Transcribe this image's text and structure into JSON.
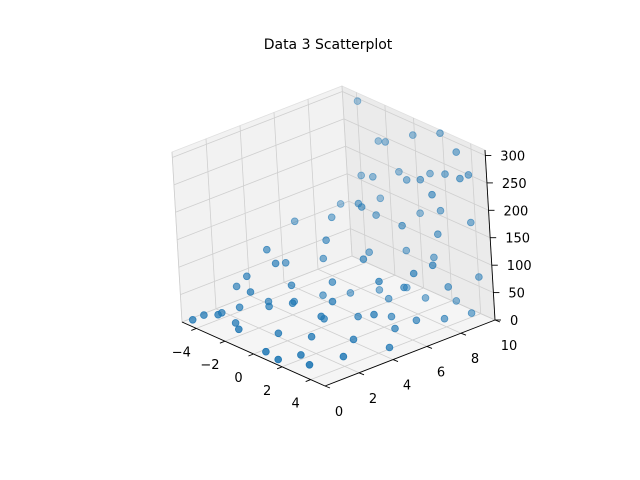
{
  "chart_data": {
    "type": "scatter",
    "projection": "3d",
    "title": "Data 3 Scatterplot",
    "xlabel": "",
    "ylabel": "",
    "zlabel": "",
    "xlim": [
      -5,
      5
    ],
    "ylim": [
      0,
      10
    ],
    "zlim": [
      0,
      310
    ],
    "x_ticks": [
      -4,
      -2,
      0,
      2,
      4
    ],
    "y_ticks": [
      0,
      2,
      4,
      6,
      8,
      10
    ],
    "z_ticks": [
      0,
      50,
      100,
      150,
      200,
      250,
      300
    ],
    "x_tick_labels": [
      "−4",
      "−2",
      "0",
      "2",
      "4"
    ],
    "y_tick_labels": [
      "0",
      "2",
      "4",
      "6",
      "8",
      "10"
    ],
    "z_tick_labels": [
      "0",
      "50",
      "100",
      "150",
      "200",
      "250",
      "300"
    ],
    "grid": true,
    "marker_color": "#1f77b4",
    "series": [
      {
        "points": [
          [
            -4.6,
            0.3,
            5
          ],
          [
            -4.4,
            0.8,
            10
          ],
          [
            -4.1,
            1.6,
            8
          ],
          [
            -3.8,
            2.4,
            12
          ],
          [
            -3.5,
            0.9,
            20
          ],
          [
            -3.2,
            3.6,
            15
          ],
          [
            -2.9,
            1.4,
            6
          ],
          [
            -2.6,
            4.6,
            10
          ],
          [
            -2.3,
            2.9,
            25
          ],
          [
            -2.0,
            5.8,
            14
          ],
          [
            -1.7,
            0.6,
            18
          ],
          [
            -1.4,
            6.9,
            12
          ],
          [
            -1.1,
            3.3,
            40
          ],
          [
            -0.8,
            8.1,
            10
          ],
          [
            -0.5,
            1.9,
            9
          ],
          [
            -0.2,
            9.2,
            8
          ],
          [
            0.1,
            4.1,
            16
          ],
          [
            0.4,
            0.4,
            4
          ],
          [
            0.7,
            7.4,
            20
          ],
          [
            1.0,
            2.6,
            12
          ],
          [
            1.3,
            5.1,
            22
          ],
          [
            1.6,
            8.8,
            15
          ],
          [
            1.9,
            1.2,
            6
          ],
          [
            2.2,
            6.3,
            18
          ],
          [
            2.5,
            3.8,
            10
          ],
          [
            2.8,
            9.6,
            14
          ],
          [
            3.1,
            0.7,
            8
          ],
          [
            3.4,
            5.5,
            20
          ],
          [
            3.7,
            2.2,
            12
          ],
          [
            4.0,
            7.9,
            16
          ],
          [
            4.3,
            4.4,
            9
          ],
          [
            4.6,
            9.0,
            20
          ],
          [
            -4.8,
            3.1,
            30
          ],
          [
            1.5,
            0.2,
            5
          ],
          [
            3.6,
            6.6,
            24
          ],
          [
            -3.9,
            3.0,
            60
          ],
          [
            -3.3,
            4.8,
            70
          ],
          [
            -2.7,
            2.2,
            55
          ],
          [
            -2.2,
            6.1,
            75
          ],
          [
            -1.6,
            3.7,
            62
          ],
          [
            -1.0,
            7.8,
            80
          ],
          [
            -0.4,
            5.1,
            65
          ],
          [
            0.3,
            8.9,
            85
          ],
          [
            0.9,
            4.0,
            58
          ],
          [
            1.4,
            2.9,
            50
          ],
          [
            2.0,
            9.1,
            90
          ],
          [
            2.6,
            6.8,
            70
          ],
          [
            3.2,
            4.5,
            55
          ],
          [
            3.9,
            8.3,
            68
          ],
          [
            4.4,
            9.7,
            75
          ],
          [
            -4.6,
            6.5,
            110
          ],
          [
            -4.1,
            8.8,
            120
          ],
          [
            -3.6,
            4.0,
            100
          ],
          [
            -2.8,
            7.2,
            130
          ],
          [
            -2.1,
            9.5,
            145
          ],
          [
            -1.3,
            5.6,
            125
          ],
          [
            -0.6,
            8.0,
            150
          ],
          [
            0.2,
            9.9,
            140
          ],
          [
            0.8,
            6.0,
            110
          ],
          [
            1.6,
            7.7,
            160
          ],
          [
            2.3,
            9.4,
            175
          ],
          [
            3.0,
            8.6,
            150
          ],
          [
            3.8,
            9.9,
            165
          ],
          [
            4.5,
            7.0,
            130
          ],
          [
            -2.4,
            3.5,
            95
          ],
          [
            -3.0,
            9.2,
            180
          ],
          [
            -1.8,
            8.9,
            195
          ],
          [
            -0.9,
            9.7,
            205
          ],
          [
            0.5,
            9.0,
            215
          ],
          [
            1.2,
            9.8,
            225
          ],
          [
            2.1,
            8.5,
            240
          ],
          [
            2.9,
            9.3,
            250
          ],
          [
            3.5,
            8.0,
            235
          ],
          [
            4.2,
            9.6,
            260
          ],
          [
            4.7,
            8.7,
            270
          ],
          [
            -2.5,
            9.9,
            240
          ],
          [
            -1.5,
            9.5,
            255
          ],
          [
            0.0,
            9.9,
            280
          ],
          [
            -3.7,
            9.8,
            300
          ],
          [
            1.9,
            9.95,
            305
          ],
          [
            3.3,
            9.7,
            290
          ],
          [
            -1.2,
            7.5,
            170
          ],
          [
            -0.1,
            6.8,
            185
          ],
          [
            4.1,
            6.2,
            120
          ],
          [
            2.7,
            5.3,
            100
          ]
        ]
      }
    ]
  }
}
